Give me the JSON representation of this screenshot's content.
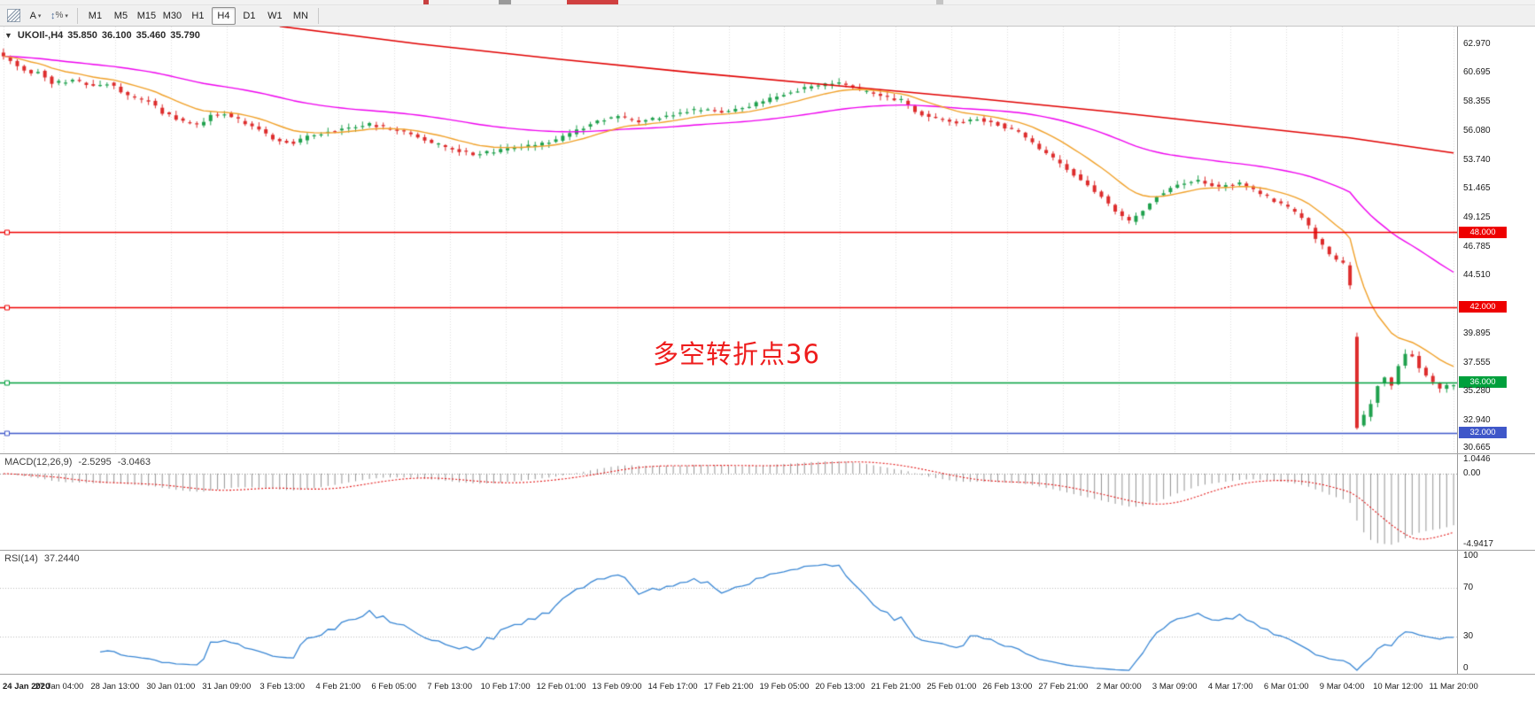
{
  "toolbar": {
    "tools": {
      "text_tool": "A",
      "percent_tool": "%"
    },
    "timeframes": [
      {
        "label": "M1",
        "active": false
      },
      {
        "label": "M5",
        "active": false
      },
      {
        "label": "M15",
        "active": false
      },
      {
        "label": "M30",
        "active": false
      },
      {
        "label": "H1",
        "active": false
      },
      {
        "label": "H4",
        "active": true
      },
      {
        "label": "D1",
        "active": false
      },
      {
        "label": "W1",
        "active": false
      },
      {
        "label": "MN",
        "active": false
      }
    ]
  },
  "chart": {
    "title": {
      "symbol_period": "UKOIl-,H4",
      "open": "35.850",
      "high": "36.100",
      "low": "35.460",
      "close": "35.790"
    },
    "annotation": {
      "text": "多空转折点36",
      "color": "#ee1c1c"
    }
  },
  "macd_panel": {
    "label": "MACD(12,26,9)",
    "value_main": "-2.5295",
    "value_signal": "-3.0463",
    "axis_labels": [
      "1.0446",
      "0.00",
      "-4.9417"
    ]
  },
  "rsi_panel": {
    "label": "RSI(14)",
    "value": "37.2440",
    "axis_labels": [
      "100",
      "70",
      "30",
      "0"
    ]
  },
  "price_axis": {
    "labels": [
      "62.970",
      "60.695",
      "58.355",
      "56.080",
      "53.740",
      "51.465",
      "49.125",
      "46.785",
      "44.510",
      "39.895",
      "37.555",
      "35.280",
      "32.940",
      "30.665"
    ]
  },
  "time_axis": {
    "labels": [
      "24 Jan 2020",
      "27 Jan 04:00",
      "28 Jan 13:00",
      "30 Jan 01:00",
      "31 Jan 09:00",
      "3 Feb 13:00",
      "4 Feb 21:00",
      "6 Feb 05:00",
      "7 Feb 13:00",
      "10 Feb 17:00",
      "12 Feb 01:00",
      "13 Feb 09:00",
      "14 Feb 17:00",
      "17 Feb 21:00",
      "19 Feb 05:00",
      "20 Feb 13:00",
      "21 Feb 21:00",
      "25 Feb 01:00",
      "26 Feb 13:00",
      "27 Feb 21:00",
      "2 Mar 00:00",
      "3 Mar 09:00",
      "4 Mar 17:00",
      "6 Mar 01:00",
      "9 Mar 04:00",
      "10 Mar 12:00",
      "11 Mar 20:00"
    ],
    "first_label_bold": "24 Jan 2020"
  },
  "chart_data": {
    "type": "candlestick",
    "symbol": "UKOIl-",
    "timeframe": "H4",
    "current_bar": {
      "open": 35.85,
      "high": 36.1,
      "low": 35.46,
      "close": 35.79
    },
    "ylim": [
      30.35,
      64.38
    ],
    "n_bars": 211,
    "seed": 42,
    "price_path_anchors": [
      [
        0,
        62.3
      ],
      [
        1,
        62.0
      ],
      [
        3,
        61.2
      ],
      [
        5,
        60.6
      ],
      [
        6,
        60.9
      ],
      [
        8,
        59.9
      ],
      [
        11,
        60.1
      ],
      [
        14,
        59.6
      ],
      [
        16,
        59.9
      ],
      [
        19,
        58.8
      ],
      [
        22,
        58.4
      ],
      [
        24,
        57.5
      ],
      [
        27,
        56.8
      ],
      [
        29,
        56.5
      ],
      [
        31,
        57.3
      ],
      [
        33,
        57.5
      ],
      [
        35,
        56.9
      ],
      [
        38,
        56.2
      ],
      [
        40,
        55.4
      ],
      [
        43,
        55.1
      ],
      [
        45,
        55.6
      ],
      [
        48,
        56.0
      ],
      [
        51,
        56.3
      ],
      [
        54,
        56.6
      ],
      [
        57,
        56.2
      ],
      [
        60,
        55.8
      ],
      [
        63,
        55.1
      ],
      [
        66,
        54.6
      ],
      [
        69,
        54.2
      ],
      [
        72,
        54.4
      ],
      [
        75,
        54.7
      ],
      [
        78,
        54.9
      ],
      [
        81,
        55.3
      ],
      [
        84,
        56.1
      ],
      [
        87,
        56.9
      ],
      [
        90,
        57.2
      ],
      [
        93,
        56.8
      ],
      [
        96,
        57.1
      ],
      [
        99,
        57.6
      ],
      [
        102,
        57.8
      ],
      [
        105,
        57.5
      ],
      [
        108,
        57.9
      ],
      [
        111,
        58.4
      ],
      [
        114,
        59.0
      ],
      [
        117,
        59.5
      ],
      [
        120,
        59.8
      ],
      [
        122,
        59.9
      ],
      [
        125,
        59.3
      ],
      [
        128,
        58.8
      ],
      [
        131,
        58.5
      ],
      [
        133,
        57.6
      ],
      [
        136,
        57.0
      ],
      [
        139,
        56.7
      ],
      [
        142,
        57.0
      ],
      [
        145,
        56.6
      ],
      [
        148,
        55.9
      ],
      [
        151,
        54.6
      ],
      [
        154,
        53.4
      ],
      [
        157,
        52.1
      ],
      [
        160,
        50.8
      ],
      [
        162,
        49.6
      ],
      [
        164,
        48.8
      ],
      [
        166,
        49.8
      ],
      [
        168,
        50.9
      ],
      [
        171,
        51.8
      ],
      [
        174,
        52.1
      ],
      [
        177,
        51.6
      ],
      [
        180,
        51.9
      ],
      [
        183,
        51.0
      ],
      [
        186,
        50.2
      ],
      [
        189,
        49.2
      ],
      [
        191,
        47.5
      ],
      [
        193,
        46.2
      ],
      [
        195,
        45.4
      ],
      [
        195.9,
        45.1
      ],
      [
        196.1,
        36.6
      ],
      [
        196.9,
        32.2
      ],
      [
        197.5,
        33.8
      ],
      [
        198.4,
        33.0
      ],
      [
        199.2,
        34.8
      ],
      [
        200,
        35.9
      ],
      [
        201,
        36.4
      ],
      [
        201.9,
        35.6
      ],
      [
        202.5,
        37.0
      ],
      [
        203.5,
        37.7
      ],
      [
        204.5,
        38.8
      ],
      [
        205.5,
        37.4
      ],
      [
        206.5,
        36.9
      ],
      [
        207.5,
        36.3
      ],
      [
        208.5,
        35.6
      ],
      [
        209.3,
        35.4
      ],
      [
        210,
        35.8
      ]
    ],
    "ma_fast": {
      "period": 13,
      "color": "#f0a028"
    },
    "ma_mid": {
      "period": 55,
      "color": "#ee00ee"
    },
    "ma_long_anchors": [
      [
        40,
        64.4
      ],
      [
        60,
        63.0
      ],
      [
        80,
        61.8
      ],
      [
        100,
        60.7
      ],
      [
        120,
        59.7
      ],
      [
        140,
        58.7
      ],
      [
        160,
        57.6
      ],
      [
        180,
        56.4
      ],
      [
        195,
        55.5
      ],
      [
        210,
        54.3
      ]
    ],
    "ma_long_color": "#e00000",
    "hlines": [
      {
        "price": 48.0,
        "color": "#ee0000",
        "badge": "48.000"
      },
      {
        "price": 42.0,
        "color": "#ee0000",
        "badge": "42.000"
      },
      {
        "price": 36.0,
        "color": "#00a03c",
        "badge": "36.000"
      },
      {
        "price": 32.0,
        "color": "#3f57c9",
        "badge": "32.000"
      }
    ],
    "macd": {
      "fast": 12,
      "slow": 26,
      "signal": 9,
      "displayed_min": -4.9417,
      "displayed_max": 1.0446,
      "current_main": -2.5295,
      "current_signal": -3.0463,
      "ylim": [
        -5.3,
        1.35
      ],
      "hist_color": "#949494",
      "signal_color": "#e21717"
    },
    "rsi": {
      "period": 14,
      "current": 37.244,
      "levels": [
        70,
        30
      ],
      "ylim": [
        0,
        100
      ],
      "color": "#3a87d4"
    },
    "colors": {
      "up": "#1fa14d",
      "down": "#dd2c2c",
      "grid": "#dcdcdc"
    }
  }
}
